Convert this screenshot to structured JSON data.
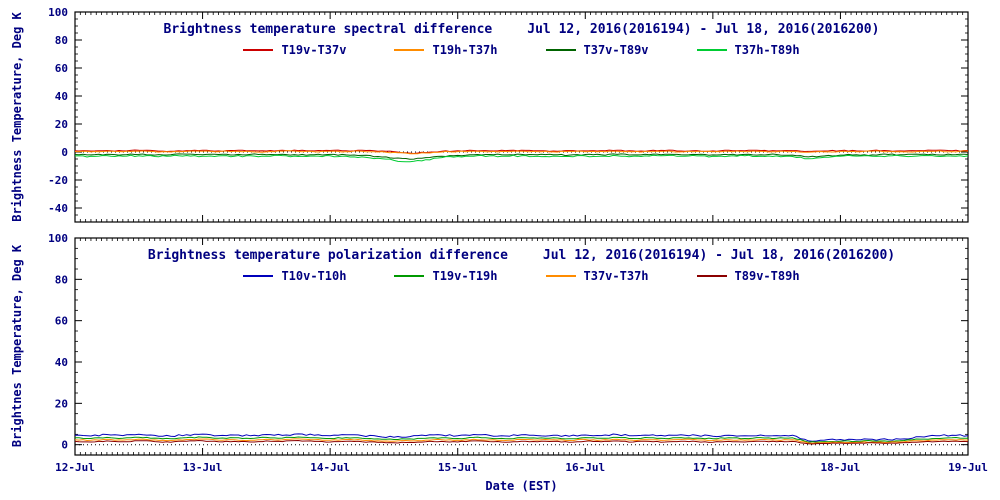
{
  "style": {
    "text_color": "#000080",
    "axis_color": "#000000",
    "background": "#ffffff"
  },
  "chart_data": [
    {
      "type": "line",
      "title": "Brightness temperature spectral difference",
      "date_range": "Jul 12, 2016(2016194) - Jul 18, 2016(2016200)",
      "ylabel": "Brightness Temperature, Deg K",
      "ylim": [
        -50,
        100
      ],
      "yticks": [
        -40,
        -20,
        0,
        20,
        40,
        60,
        80,
        100
      ],
      "xlim": [
        12,
        19
      ],
      "x_start": 12,
      "x_step": 0.125,
      "grid": "dotted-zero-line",
      "legend_position": "top-inside",
      "series": [
        {
          "name": "T19v-T37v",
          "color": "#cc0000",
          "noise_amp": 0.35,
          "values": [
            0.9,
            0.7,
            1.1,
            0.8,
            1.2,
            0.9,
            0.6,
            1.0,
            1.2,
            0.8,
            1.1,
            0.9,
            0.7,
            1.2,
            1.0,
            0.8,
            1.1,
            0.9,
            1.2,
            0.6,
            0.3,
            -0.8,
            -0.4,
            0.5,
            0.9,
            1.1,
            0.8,
            1.0,
            1.2,
            0.9,
            0.7,
            1.1,
            0.8,
            1.0,
            1.2,
            0.8,
            0.9,
            1.1,
            0.7,
            1.0,
            0.8,
            1.2,
            0.9,
            1.1,
            0.8,
            1.0,
            0.4,
            0.7,
            1.0,
            0.8,
            1.1,
            0.9,
            0.7,
            1.0,
            1.2,
            0.9,
            1.1
          ]
        },
        {
          "name": "T19h-T37h",
          "color": "#ff8c00",
          "noise_amp": 0.35,
          "values": [
            0.3,
            0.1,
            0.5,
            0.2,
            0.6,
            0.3,
            0.0,
            0.4,
            0.6,
            0.2,
            0.5,
            0.3,
            0.1,
            0.6,
            0.4,
            0.2,
            0.5,
            0.3,
            0.6,
            0.0,
            -0.3,
            -1.2,
            -0.7,
            0.0,
            0.3,
            0.5,
            0.2,
            0.4,
            0.6,
            0.3,
            0.1,
            0.5,
            0.2,
            0.4,
            0.6,
            0.2,
            0.3,
            0.5,
            0.1,
            0.4,
            0.2,
            0.6,
            0.3,
            0.5,
            0.2,
            0.4,
            -0.2,
            0.1,
            0.4,
            0.2,
            0.5,
            0.3,
            0.1,
            0.4,
            0.6,
            0.3,
            0.5
          ]
        },
        {
          "name": "T37v-T89v",
          "color": "#006400",
          "noise_amp": 0.45,
          "values": [
            -1.8,
            -2.1,
            -1.6,
            -2.0,
            -1.7,
            -2.2,
            -1.9,
            -1.5,
            -2.0,
            -1.8,
            -2.1,
            -1.7,
            -2.0,
            -1.6,
            -2.2,
            -1.9,
            -1.7,
            -2.1,
            -2.4,
            -3.2,
            -4.5,
            -5.2,
            -4.0,
            -3.0,
            -2.4,
            -2.0,
            -1.8,
            -2.1,
            -1.7,
            -2.0,
            -1.9,
            -2.2,
            -1.8,
            -2.0,
            -1.7,
            -2.1,
            -1.9,
            -1.6,
            -2.0,
            -1.8,
            -2.1,
            -1.9,
            -1.7,
            -2.0,
            -1.8,
            -2.2,
            -3.5,
            -2.8,
            -2.2,
            -1.9,
            -2.1,
            -1.8,
            -2.0,
            -1.7,
            -2.0,
            -1.9,
            -1.8
          ]
        },
        {
          "name": "T37h-T89h",
          "color": "#00cc33",
          "noise_amp": 0.55,
          "values": [
            -2.8,
            -3.1,
            -2.6,
            -3.0,
            -2.7,
            -3.2,
            -2.9,
            -2.5,
            -3.0,
            -2.8,
            -3.1,
            -2.7,
            -3.0,
            -2.6,
            -3.2,
            -2.9,
            -2.7,
            -3.1,
            -3.5,
            -4.5,
            -6.0,
            -7.0,
            -5.5,
            -4.0,
            -3.2,
            -3.0,
            -2.8,
            -3.1,
            -2.7,
            -3.0,
            -2.9,
            -3.2,
            -2.8,
            -3.0,
            -2.7,
            -3.1,
            -2.9,
            -2.6,
            -3.0,
            -2.8,
            -3.1,
            -2.9,
            -2.7,
            -3.0,
            -2.8,
            -3.2,
            -4.8,
            -3.8,
            -3.0,
            -2.9,
            -3.1,
            -2.8,
            -3.0,
            -2.7,
            -3.0,
            -2.9,
            -2.8
          ]
        }
      ]
    },
    {
      "type": "line",
      "title": "Brightness temperature polarization difference",
      "date_range": "Jul 12, 2016(2016194) - Jul 18, 2016(2016200)",
      "ylabel": "Brightnes Temperature, Deg K",
      "xlabel": "Date (EST)",
      "ylim": [
        -5,
        100
      ],
      "yticks": [
        0,
        20,
        40,
        60,
        80,
        100
      ],
      "xlim": [
        12,
        19
      ],
      "x_start": 12,
      "x_step": 0.125,
      "x_tick_labels": [
        "12-Jul",
        "13-Jul",
        "14-Jul",
        "15-Jul",
        "16-Jul",
        "17-Jul",
        "18-Jul",
        "19-Jul"
      ],
      "grid": "dotted-zero-line",
      "legend_position": "top-inside",
      "series": [
        {
          "name": "T10v-T10h",
          "color": "#0000bb",
          "noise_amp": 0.4,
          "values": [
            4.6,
            4.2,
            4.9,
            4.4,
            5.0,
            4.5,
            4.1,
            4.8,
            5.1,
            4.4,
            4.7,
            4.3,
            4.9,
            4.5,
            5.2,
            4.6,
            4.3,
            4.8,
            4.4,
            4.0,
            3.6,
            3.9,
            4.4,
            4.7,
            4.3,
            4.9,
            4.5,
            4.2,
            4.8,
            4.4,
            4.6,
            4.1,
            4.7,
            4.4,
            4.9,
            4.3,
            4.6,
            4.2,
            4.8,
            4.5,
            4.1,
            4.6,
            4.3,
            4.7,
            4.4,
            4.6,
            1.8,
            2.2,
            2.5,
            2.3,
            2.6,
            2.4,
            2.8,
            3.8,
            4.3,
            4.6,
            4.4
          ]
        },
        {
          "name": "T19v-T19h",
          "color": "#009900",
          "noise_amp": 0.25,
          "values": [
            3.3,
            3.0,
            3.5,
            3.1,
            3.6,
            3.2,
            2.9,
            3.4,
            3.6,
            3.1,
            3.3,
            3.0,
            3.5,
            3.2,
            3.7,
            3.3,
            3.0,
            3.4,
            3.1,
            2.8,
            2.5,
            2.8,
            3.1,
            3.3,
            3.0,
            3.5,
            3.2,
            2.9,
            3.4,
            3.1,
            3.3,
            2.9,
            3.4,
            3.1,
            3.5,
            3.0,
            3.3,
            3.0,
            3.4,
            3.2,
            2.9,
            3.3,
            3.0,
            3.4,
            3.1,
            3.3,
            1.2,
            1.5,
            1.7,
            1.6,
            1.8,
            1.6,
            2.0,
            2.7,
            3.0,
            3.3,
            3.1
          ]
        },
        {
          "name": "T37v-T37h",
          "color": "#ff8c00",
          "noise_amp": 0.22,
          "values": [
            2.4,
            2.1,
            2.6,
            2.2,
            2.7,
            2.3,
            2.0,
            2.5,
            2.7,
            2.2,
            2.4,
            2.1,
            2.6,
            2.3,
            2.8,
            2.4,
            2.1,
            2.5,
            2.2,
            1.9,
            1.7,
            1.9,
            2.2,
            2.4,
            2.1,
            2.6,
            2.3,
            2.0,
            2.5,
            2.2,
            2.4,
            2.0,
            2.5,
            2.2,
            2.6,
            2.1,
            2.4,
            2.1,
            2.5,
            2.3,
            2.0,
            2.4,
            2.1,
            2.5,
            2.2,
            2.4,
            0.8,
            1.0,
            1.2,
            1.1,
            1.3,
            1.1,
            1.4,
            1.9,
            2.2,
            2.4,
            2.2
          ]
        },
        {
          "name": "T89v-T89h",
          "color": "#8b0000",
          "noise_amp": 0.2,
          "values": [
            1.6,
            1.3,
            1.8,
            1.4,
            1.9,
            1.5,
            1.2,
            1.7,
            1.9,
            1.4,
            1.6,
            1.3,
            1.8,
            1.5,
            2.0,
            1.6,
            1.3,
            1.7,
            1.4,
            1.1,
            0.9,
            1.1,
            1.4,
            1.6,
            1.3,
            1.8,
            1.5,
            1.2,
            1.7,
            1.4,
            1.6,
            1.2,
            1.7,
            1.4,
            1.8,
            1.3,
            1.6,
            1.3,
            1.7,
            1.5,
            1.2,
            1.6,
            1.3,
            1.7,
            1.4,
            1.6,
            0.4,
            0.6,
            0.8,
            0.7,
            0.9,
            0.7,
            1.0,
            1.3,
            1.5,
            1.7,
            1.5
          ]
        }
      ]
    }
  ]
}
